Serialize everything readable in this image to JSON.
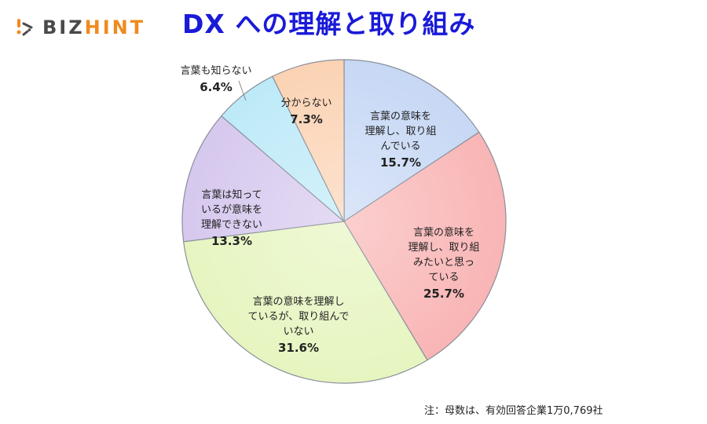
{
  "logo": {
    "part1": "BIZ",
    "part2": "HINT",
    "icon": "bizhint-logo-icon",
    "colors": {
      "dark": "#4a4a4a",
      "accent": "#f08a1c"
    }
  },
  "title": "DX への理解と取り組み",
  "note": "注：母数は、有効回答企業1万0,769社",
  "chart_data": {
    "type": "pie",
    "title": "DX への理解と取り組み",
    "start_angle_deg": 0,
    "direction": "clockwise",
    "slices": [
      {
        "label": "言葉の意味を理解し、取り組んでいる",
        "value": 15.7,
        "display": "15.7%",
        "color": "#c7d8f5"
      },
      {
        "label": "言葉の意味を理解し、取り組みたいと思っている",
        "value": 25.7,
        "display": "25.7%",
        "color": "#f9b5b5"
      },
      {
        "label": "言葉の意味を理解しているが、取り組んでいない",
        "value": 31.6,
        "display": "31.6%",
        "color": "#e6f5c0"
      },
      {
        "label": "言葉は知っているが意味を理解できない",
        "value": 13.3,
        "display": "13.3%",
        "color": "#d6c8ee"
      },
      {
        "label": "言葉も知らない",
        "value": 6.4,
        "display": "6.4%",
        "color": "#bdeaf8"
      },
      {
        "label": "分からない",
        "value": 7.3,
        "display": "7.3%",
        "color": "#fbd3b4"
      }
    ],
    "note": "注：母数は、有効回答企業1万0,769社"
  },
  "labels": [
    {
      "text": "言葉の意味を\n理解し、取り組\nんでいる",
      "pct": "15.7%"
    },
    {
      "text": "言葉の意味を\n理解し、取り組\nみたいと思っ\nている",
      "pct": "25.7%"
    },
    {
      "text": "言葉の意味を理解し\nているが、取り組んで\nいない",
      "pct": "31.6%"
    },
    {
      "text": "言葉は知って\nいるが意味を\n理解できない",
      "pct": "13.3%"
    },
    {
      "text": "言葉も知らない",
      "pct": "6.4%"
    },
    {
      "text": "分からない",
      "pct": "7.3%"
    }
  ]
}
